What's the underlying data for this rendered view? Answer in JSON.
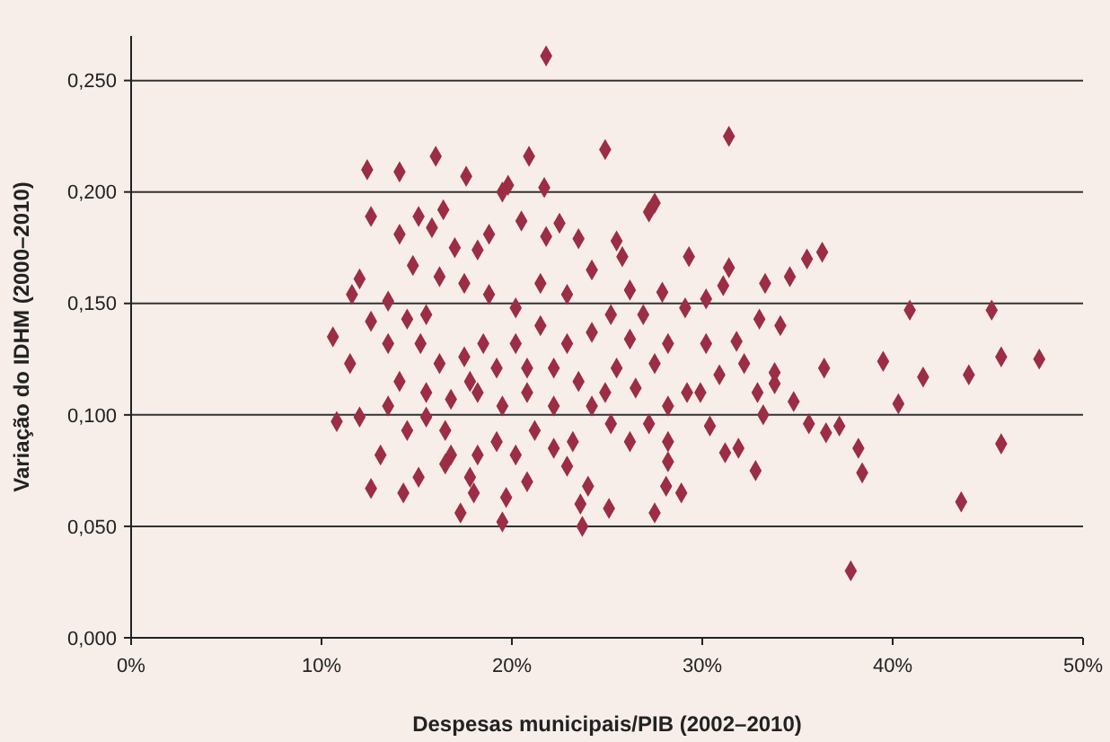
{
  "chart_data": {
    "type": "scatter",
    "xlabel": "Despesas municipais/PIB (2002–2010)",
    "ylabel": "Variação do IDHM (2000–2010)",
    "xlim": [
      0,
      50
    ],
    "xticks": [
      {
        "value": 0,
        "label": "0%"
      },
      {
        "value": 10,
        "label": "10%"
      },
      {
        "value": 20,
        "label": "20%"
      },
      {
        "value": 30,
        "label": "30%"
      },
      {
        "value": 40,
        "label": "40%"
      },
      {
        "value": 50,
        "label": "50%"
      }
    ],
    "ylim": [
      0,
      0.27
    ],
    "yticks": [
      {
        "value": 0,
        "label": "0,000"
      },
      {
        "value": 0.05,
        "label": "0,050"
      },
      {
        "value": 0.1,
        "label": "0,100"
      },
      {
        "value": 0.15,
        "label": "0,150"
      },
      {
        "value": 0.2,
        "label": "0,200"
      },
      {
        "value": 0.25,
        "label": "0,250"
      }
    ],
    "grid": "y",
    "marker": "diamond",
    "series": [
      {
        "color": "#9b2d45",
        "x": [
          21.8,
          31.4,
          24.9,
          12.4,
          16.0,
          20.9,
          14.1,
          17.6,
          19.8,
          21.7,
          12.6,
          37.8,
          43.6,
          45.7,
          47.7,
          45.2,
          40.9,
          45.7,
          44.0,
          41.6,
          39.5,
          40.3,
          38.4,
          38.2,
          37.2,
          36.5,
          36.4,
          36.3,
          35.5,
          34.6,
          34.8,
          35.6,
          32.8,
          23.7,
          19.5,
          17.3,
          27.5,
          28.9,
          14.3,
          12.6,
          10.8,
          10.6,
          31.4,
          29.3,
          27.5,
          27.2,
          34.1,
          33.0,
          31.9,
          31.2,
          30.4,
          33.2,
          30.2,
          31.8,
          25.1,
          23.6,
          20.8,
          18.0,
          28.1,
          28.2,
          32.9,
          33.8,
          27.9,
          30.2,
          31.1,
          25.5,
          23.5,
          25.8,
          33.3,
          13.5,
          12.0,
          11.6,
          11.5,
          12.0,
          12.6,
          13.5,
          14.5,
          14.8,
          15.1,
          15.8,
          16.4,
          14.1,
          17.0,
          18.2,
          18.8,
          19.5,
          20.5,
          21.8,
          22.5,
          24.2,
          22.9,
          21.5,
          20.2,
          18.8,
          17.5,
          16.2,
          15.5,
          15.2,
          16.2,
          17.5,
          18.5,
          19.2,
          20.2,
          21.5,
          22.9,
          24.2,
          25.2,
          26.2,
          26.9,
          26.2,
          25.5,
          26.5,
          27.5,
          28.2,
          29.1,
          29.2,
          28.2,
          27.2,
          26.2,
          25.2,
          24.2,
          23.2,
          22.9,
          22.2,
          21.2,
          20.2,
          19.2,
          18.2,
          16.8,
          16.5,
          15.5,
          14.5,
          13.5,
          14.1,
          15.5,
          16.8,
          18.2,
          19.5,
          20.8,
          22.2,
          23.5,
          24.9,
          22.2,
          20.8,
          17.8,
          13.1,
          15.1,
          16.5,
          17.8,
          19.7,
          24.0,
          28.2,
          29.9,
          30.9,
          32.2,
          33.8
        ],
        "values": [
          0.261,
          0.225,
          0.219,
          0.21,
          0.216,
          0.216,
          0.209,
          0.207,
          0.203,
          0.202,
          0.189,
          0.03,
          0.061,
          0.087,
          0.125,
          0.147,
          0.147,
          0.126,
          0.118,
          0.117,
          0.124,
          0.105,
          0.074,
          0.085,
          0.095,
          0.092,
          0.121,
          0.173,
          0.17,
          0.162,
          0.106,
          0.096,
          0.075,
          0.05,
          0.052,
          0.056,
          0.056,
          0.065,
          0.065,
          0.067,
          0.097,
          0.135,
          0.166,
          0.171,
          0.195,
          0.191,
          0.14,
          0.143,
          0.085,
          0.083,
          0.095,
          0.1,
          0.132,
          0.133,
          0.058,
          0.06,
          0.07,
          0.065,
          0.068,
          0.079,
          0.11,
          0.114,
          0.155,
          0.152,
          0.158,
          0.178,
          0.179,
          0.171,
          0.159,
          0.151,
          0.161,
          0.154,
          0.123,
          0.099,
          0.142,
          0.132,
          0.143,
          0.167,
          0.189,
          0.184,
          0.192,
          0.181,
          0.175,
          0.174,
          0.181,
          0.2,
          0.187,
          0.18,
          0.186,
          0.165,
          0.154,
          0.159,
          0.148,
          0.154,
          0.159,
          0.162,
          0.145,
          0.132,
          0.123,
          0.126,
          0.132,
          0.121,
          0.132,
          0.14,
          0.132,
          0.137,
          0.145,
          0.156,
          0.145,
          0.134,
          0.121,
          0.112,
          0.123,
          0.132,
          0.148,
          0.11,
          0.104,
          0.096,
          0.088,
          0.096,
          0.104,
          0.088,
          0.077,
          0.085,
          0.093,
          0.082,
          0.088,
          0.082,
          0.082,
          0.093,
          0.099,
          0.093,
          0.104,
          0.115,
          0.11,
          0.107,
          0.11,
          0.104,
          0.11,
          0.104,
          0.115,
          0.11,
          0.121,
          0.121,
          0.115,
          0.082,
          0.072,
          0.078,
          0.072,
          0.063,
          0.068,
          0.088,
          0.11,
          0.118,
          0.123,
          0.119
        ]
      }
    ]
  }
}
